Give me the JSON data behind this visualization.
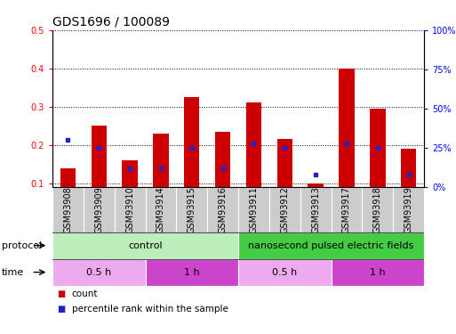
{
  "title": "GDS1696 / 100089",
  "samples": [
    "GSM93908",
    "GSM93909",
    "GSM93910",
    "GSM93914",
    "GSM93915",
    "GSM93916",
    "GSM93911",
    "GSM93912",
    "GSM93913",
    "GSM93917",
    "GSM93918",
    "GSM93919"
  ],
  "count_values": [
    0.14,
    0.25,
    0.16,
    0.23,
    0.325,
    0.235,
    0.31,
    0.215,
    0.1,
    0.4,
    0.295,
    0.19
  ],
  "percentile_values": [
    30,
    25,
    12,
    12,
    25,
    12,
    28,
    25,
    8,
    28,
    25,
    8
  ],
  "ylim_left": [
    0.09,
    0.5
  ],
  "ylim_right": [
    0,
    100
  ],
  "yticks_left": [
    0.1,
    0.2,
    0.3,
    0.4,
    0.5
  ],
  "yticks_right": [
    0,
    25,
    50,
    75,
    100
  ],
  "ytick_labels_right": [
    "0%",
    "25%",
    "50%",
    "75%",
    "100%"
  ],
  "bar_color": "#cc0000",
  "dot_color": "#2222cc",
  "bg_color": "#ffffff",
  "grid_color": "#000000",
  "protocol_groups": [
    {
      "label": "control",
      "start": 0,
      "end": 5,
      "color": "#bbeebb"
    },
    {
      "label": "nanosecond pulsed electric fields",
      "start": 6,
      "end": 11,
      "color": "#44cc44"
    }
  ],
  "time_groups": [
    {
      "label": "0.5 h",
      "start": 0,
      "end": 2,
      "color": "#eeaaee"
    },
    {
      "label": "1 h",
      "start": 3,
      "end": 5,
      "color": "#cc44cc"
    },
    {
      "label": "0.5 h",
      "start": 6,
      "end": 8,
      "color": "#eeaaee"
    },
    {
      "label": "1 h",
      "start": 9,
      "end": 11,
      "color": "#cc44cc"
    }
  ],
  "legend_count_label": "count",
  "legend_pct_label": "percentile rank within the sample",
  "title_fontsize": 10,
  "tick_fontsize": 7,
  "bar_width": 0.5,
  "label_fontsize": 8,
  "row_label_fontsize": 8
}
